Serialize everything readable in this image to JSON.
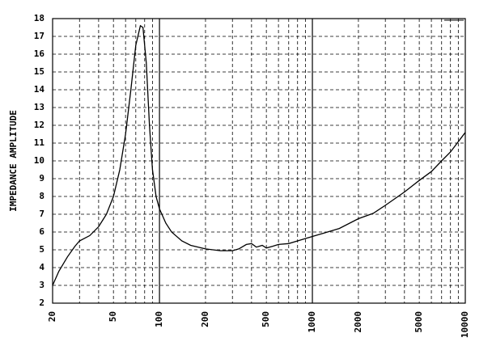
{
  "chart_data": {
    "type": "line",
    "y_label": "IMPEDANCE AMPLITUDE",
    "log_x": true,
    "x": [
      20,
      22,
      25,
      28,
      30,
      35,
      40,
      45,
      50,
      55,
      60,
      65,
      70,
      75,
      78,
      82,
      86,
      90,
      95,
      100,
      110,
      120,
      140,
      160,
      200,
      250,
      300,
      330,
      370,
      400,
      430,
      470,
      500,
      550,
      600,
      700,
      800,
      1000,
      1200,
      1500,
      2000,
      2500,
      3000,
      4000,
      5000,
      6000,
      7000,
      8000,
      10000
    ],
    "series": [
      {
        "color": "#000000",
        "values": [
          3.0,
          3.8,
          4.6,
          5.2,
          5.5,
          5.8,
          6.3,
          7.0,
          8.0,
          9.5,
          11.5,
          14.0,
          16.5,
          17.6,
          17.5,
          15.5,
          12.0,
          9.5,
          8.0,
          7.3,
          6.5,
          6.0,
          5.5,
          5.25,
          5.05,
          4.95,
          4.95,
          5.05,
          5.3,
          5.35,
          5.15,
          5.25,
          5.1,
          5.2,
          5.3,
          5.35,
          5.5,
          5.75,
          5.95,
          6.2,
          6.75,
          7.05,
          7.5,
          8.25,
          8.9,
          9.4,
          10.0,
          10.5,
          11.6
        ]
      }
    ],
    "xlim": [
      20,
      10000
    ],
    "xticks": [
      20,
      50,
      100,
      200,
      500,
      1000,
      2000,
      5000,
      10000
    ],
    "x_minor_grid": [
      30,
      40,
      60,
      70,
      80,
      90,
      300,
      400,
      600,
      700,
      800,
      900,
      3000,
      4000,
      6000,
      7000,
      8000,
      9000
    ],
    "x_major_grid": [
      100,
      1000
    ],
    "ylim": [
      2,
      18
    ],
    "yticks": [
      2,
      3,
      4,
      5,
      6,
      7,
      8,
      9,
      10,
      11,
      12,
      13,
      14,
      15,
      16,
      17,
      18
    ],
    "grid": true
  }
}
